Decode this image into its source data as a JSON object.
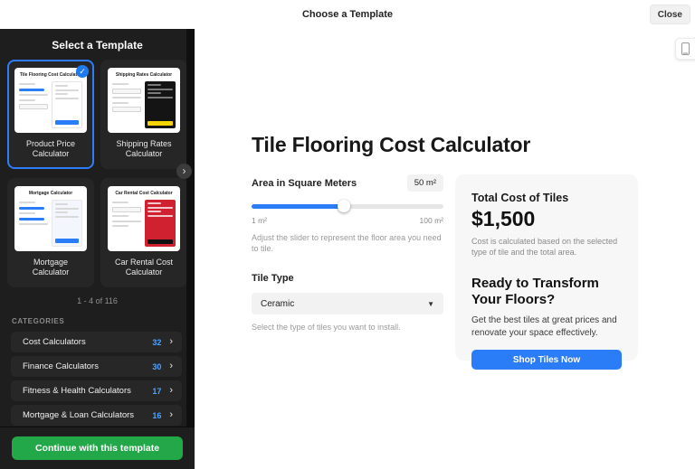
{
  "modal": {
    "title": "Choose a Template",
    "close_label": "Close"
  },
  "icons": {
    "check": "✓",
    "chevron_right": "›",
    "caret_down": "▼"
  },
  "colors": {
    "accent_blue": "#2b7cf7",
    "accent_green": "#22a848",
    "count_blue": "#4da2ff",
    "selected_border": "#2e7cf6",
    "sidebar_bg": "#1e1e1e",
    "card_bg": "#262626"
  },
  "sidebar": {
    "header": "Select a Template",
    "templates": [
      {
        "label": "Product Price Calculator",
        "preview_title": "Tile Flooring Cost Calculator",
        "selected": true
      },
      {
        "label": "Shipping Rates Calculator",
        "preview_title": "Shipping Rates Calculator",
        "selected": false
      },
      {
        "label": "Mortgage Calculator",
        "preview_title": "Mortgage Calculator",
        "selected": false
      },
      {
        "label": "Car Rental Cost Calculator",
        "preview_title": "Car Rental Cost Calculator",
        "selected": false
      }
    ],
    "pagination": "1 - 4 of 116",
    "categories_header": "CATEGORIES",
    "categories": [
      {
        "label": "Cost Calculators",
        "count": "32"
      },
      {
        "label": "Finance Calculators",
        "count": "30"
      },
      {
        "label": "Fitness & Health Calculators",
        "count": "17"
      },
      {
        "label": "Mortgage & Loan Calculators",
        "count": "16"
      }
    ],
    "continue_button": "Continue with this template"
  },
  "preview": {
    "title": "Tile Flooring Cost Calculator",
    "area_slider": {
      "label": "Area in Square Meters",
      "value": "50 m²",
      "min": "1 m²",
      "max": "100 m²",
      "percent": 48,
      "helper": "Adjust the slider to represent the floor area you need to tile."
    },
    "tile_type": {
      "label": "Tile Type",
      "value": "Ceramic",
      "helper": "Select the type of tiles you want to install."
    },
    "summary": {
      "total_label": "Total Cost of Tiles",
      "total_value": "$1,500",
      "total_note": "Cost is calculated based on the selected type of tile and the total area.",
      "cta_heading": "Ready to Transform Your Floors?",
      "cta_text": "Get the best tiles at great prices and renovate your space effectively.",
      "cta_button": "Shop Tiles Now"
    }
  }
}
